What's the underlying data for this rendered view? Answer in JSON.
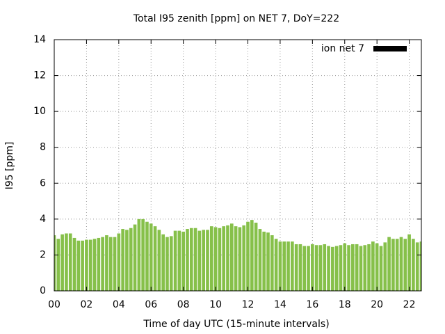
{
  "chart_data": {
    "type": "bar",
    "title": "Total I95 zenith [ppm] on NET 7, DoY=222",
    "x_label": "Time of day UTC (15-minute intervals)",
    "y_label": "I95 [ppm]",
    "x": [
      0,
      0.25,
      0.5,
      0.75,
      1,
      1.25,
      1.5,
      1.75,
      2,
      2.25,
      2.5,
      2.75,
      3,
      3.25,
      3.5,
      3.75,
      4,
      4.25,
      4.5,
      4.75,
      5,
      5.25,
      5.5,
      5.75,
      6,
      6.25,
      6.5,
      6.75,
      7,
      7.25,
      7.5,
      7.75,
      8,
      8.25,
      8.5,
      8.75,
      9,
      9.25,
      9.5,
      9.75,
      10,
      10.25,
      10.5,
      10.75,
      11,
      11.25,
      11.5,
      11.75,
      12,
      12.25,
      12.5,
      12.75,
      13,
      13.25,
      13.5,
      13.75,
      14,
      14.25,
      14.5,
      14.75,
      15,
      15.25,
      15.5,
      15.75,
      16,
      16.25,
      16.5,
      16.75,
      17,
      17.25,
      17.5,
      17.75,
      18,
      18.25,
      18.5,
      18.75,
      19,
      19.25,
      19.5,
      19.75,
      20,
      20.25,
      20.5,
      20.75,
      21,
      21.25,
      21.5,
      21.75,
      22,
      22.25,
      22.5,
      22.75
    ],
    "series": [
      {
        "name": "ion net 7",
        "color": "#86c04a",
        "legend_color": "#000000",
        "values": [
          3.1,
          2.9,
          3.15,
          3.2,
          3.2,
          2.95,
          2.8,
          2.8,
          2.85,
          2.85,
          2.9,
          2.95,
          3.0,
          3.1,
          3.0,
          3.0,
          3.2,
          3.45,
          3.4,
          3.5,
          3.7,
          4.0,
          4.0,
          3.85,
          3.75,
          3.6,
          3.4,
          3.15,
          3.0,
          3.05,
          3.35,
          3.35,
          3.3,
          3.45,
          3.5,
          3.5,
          3.35,
          3.4,
          3.4,
          3.6,
          3.55,
          3.5,
          3.6,
          3.65,
          3.75,
          3.6,
          3.55,
          3.65,
          3.85,
          3.95,
          3.8,
          3.45,
          3.3,
          3.25,
          3.1,
          2.9,
          2.75,
          2.75,
          2.75,
          2.75,
          2.6,
          2.6,
          2.5,
          2.5,
          2.6,
          2.55,
          2.55,
          2.6,
          2.5,
          2.45,
          2.5,
          2.55,
          2.65,
          2.55,
          2.6,
          2.6,
          2.5,
          2.55,
          2.6,
          2.75,
          2.65,
          2.5,
          2.7,
          3.0,
          2.9,
          2.9,
          3.0,
          2.9,
          3.15,
          2.9,
          2.7,
          2.75
        ]
      }
    ],
    "bar_width": 0.2,
    "xlim": [
      0,
      22.75
    ],
    "xticks": [
      {
        "value": 0,
        "label": "00"
      },
      {
        "value": 2,
        "label": "02"
      },
      {
        "value": 4,
        "label": "04"
      },
      {
        "value": 6,
        "label": "06"
      },
      {
        "value": 8,
        "label": "08"
      },
      {
        "value": 10,
        "label": "10"
      },
      {
        "value": 12,
        "label": "12"
      },
      {
        "value": 14,
        "label": "14"
      },
      {
        "value": 16,
        "label": "16"
      },
      {
        "value": 18,
        "label": "18"
      },
      {
        "value": 20,
        "label": "20"
      },
      {
        "value": 22,
        "label": "22"
      }
    ],
    "ylim": [
      0,
      14
    ],
    "yticks": [
      0,
      2,
      4,
      6,
      8,
      10,
      12,
      14
    ],
    "grid": true,
    "legend": "top-right"
  }
}
